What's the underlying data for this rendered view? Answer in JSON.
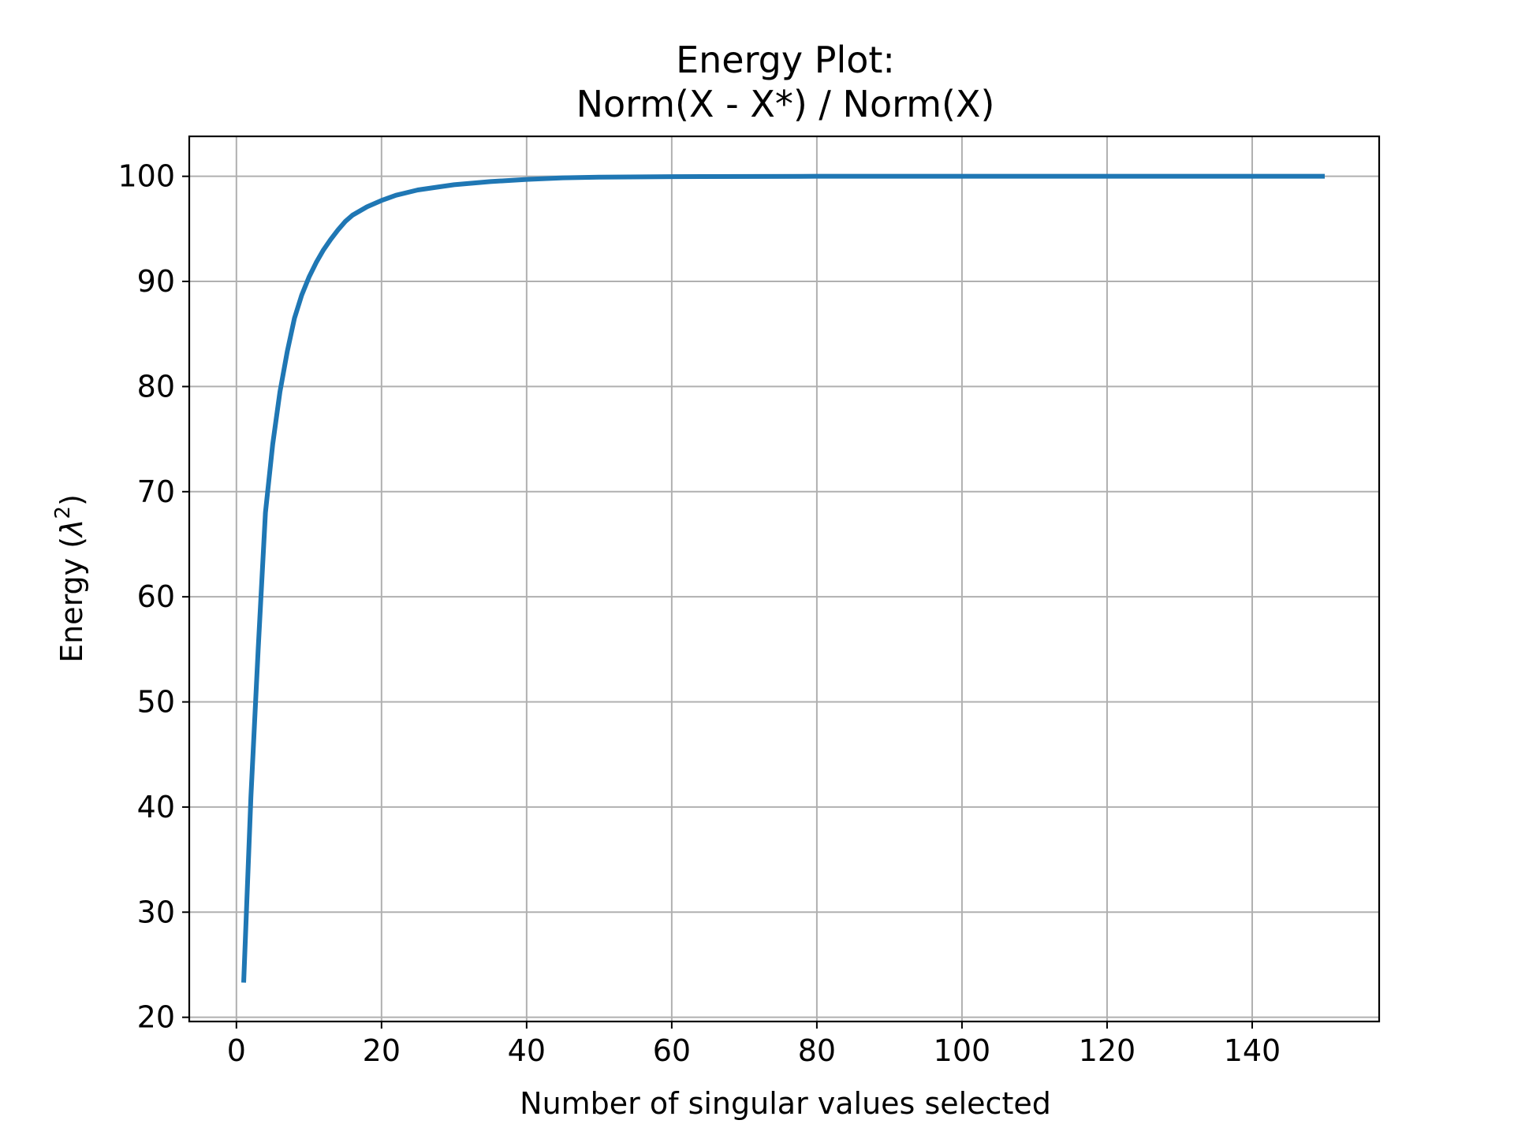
{
  "chart_data": {
    "type": "line",
    "title_lines": [
      "Energy Plot:",
      "Norm(X - X*) / Norm(X)"
    ],
    "xlabel": "Number of singular values selected",
    "ylabel_main": "Energy (",
    "ylabel_symbol": "λ",
    "ylabel_sup": "2",
    "ylabel_close": ")",
    "xlim": [
      -6.5,
      157.5
    ],
    "ylim": [
      19.6,
      103.8
    ],
    "xticks": [
      0,
      20,
      40,
      60,
      80,
      100,
      120,
      140
    ],
    "xtick_labels": [
      "0",
      "20",
      "40",
      "60",
      "80",
      "100",
      "120",
      "140"
    ],
    "yticks": [
      20,
      30,
      40,
      50,
      60,
      70,
      80,
      90,
      100
    ],
    "ytick_labels": [
      "20",
      "30",
      "40",
      "50",
      "60",
      "70",
      "80",
      "90",
      "100"
    ],
    "grid": true,
    "series": [
      {
        "color": "#1f77b4",
        "x": [
          1,
          2,
          3,
          4,
          5,
          6,
          7,
          8,
          9,
          10,
          11,
          12,
          13,
          14,
          15,
          16,
          18,
          20,
          22,
          25,
          28,
          30,
          35,
          40,
          45,
          50,
          60,
          80,
          100,
          120,
          150
        ],
        "y": [
          23.3,
          41.0,
          55.0,
          68.0,
          74.5,
          79.5,
          83.3,
          86.5,
          88.7,
          90.4,
          91.8,
          93.0,
          94.0,
          94.9,
          95.7,
          96.3,
          97.1,
          97.7,
          98.2,
          98.7,
          99.0,
          99.2,
          99.5,
          99.7,
          99.85,
          99.92,
          99.97,
          100.0,
          100.0,
          100.0,
          100.0
        ]
      }
    ]
  }
}
